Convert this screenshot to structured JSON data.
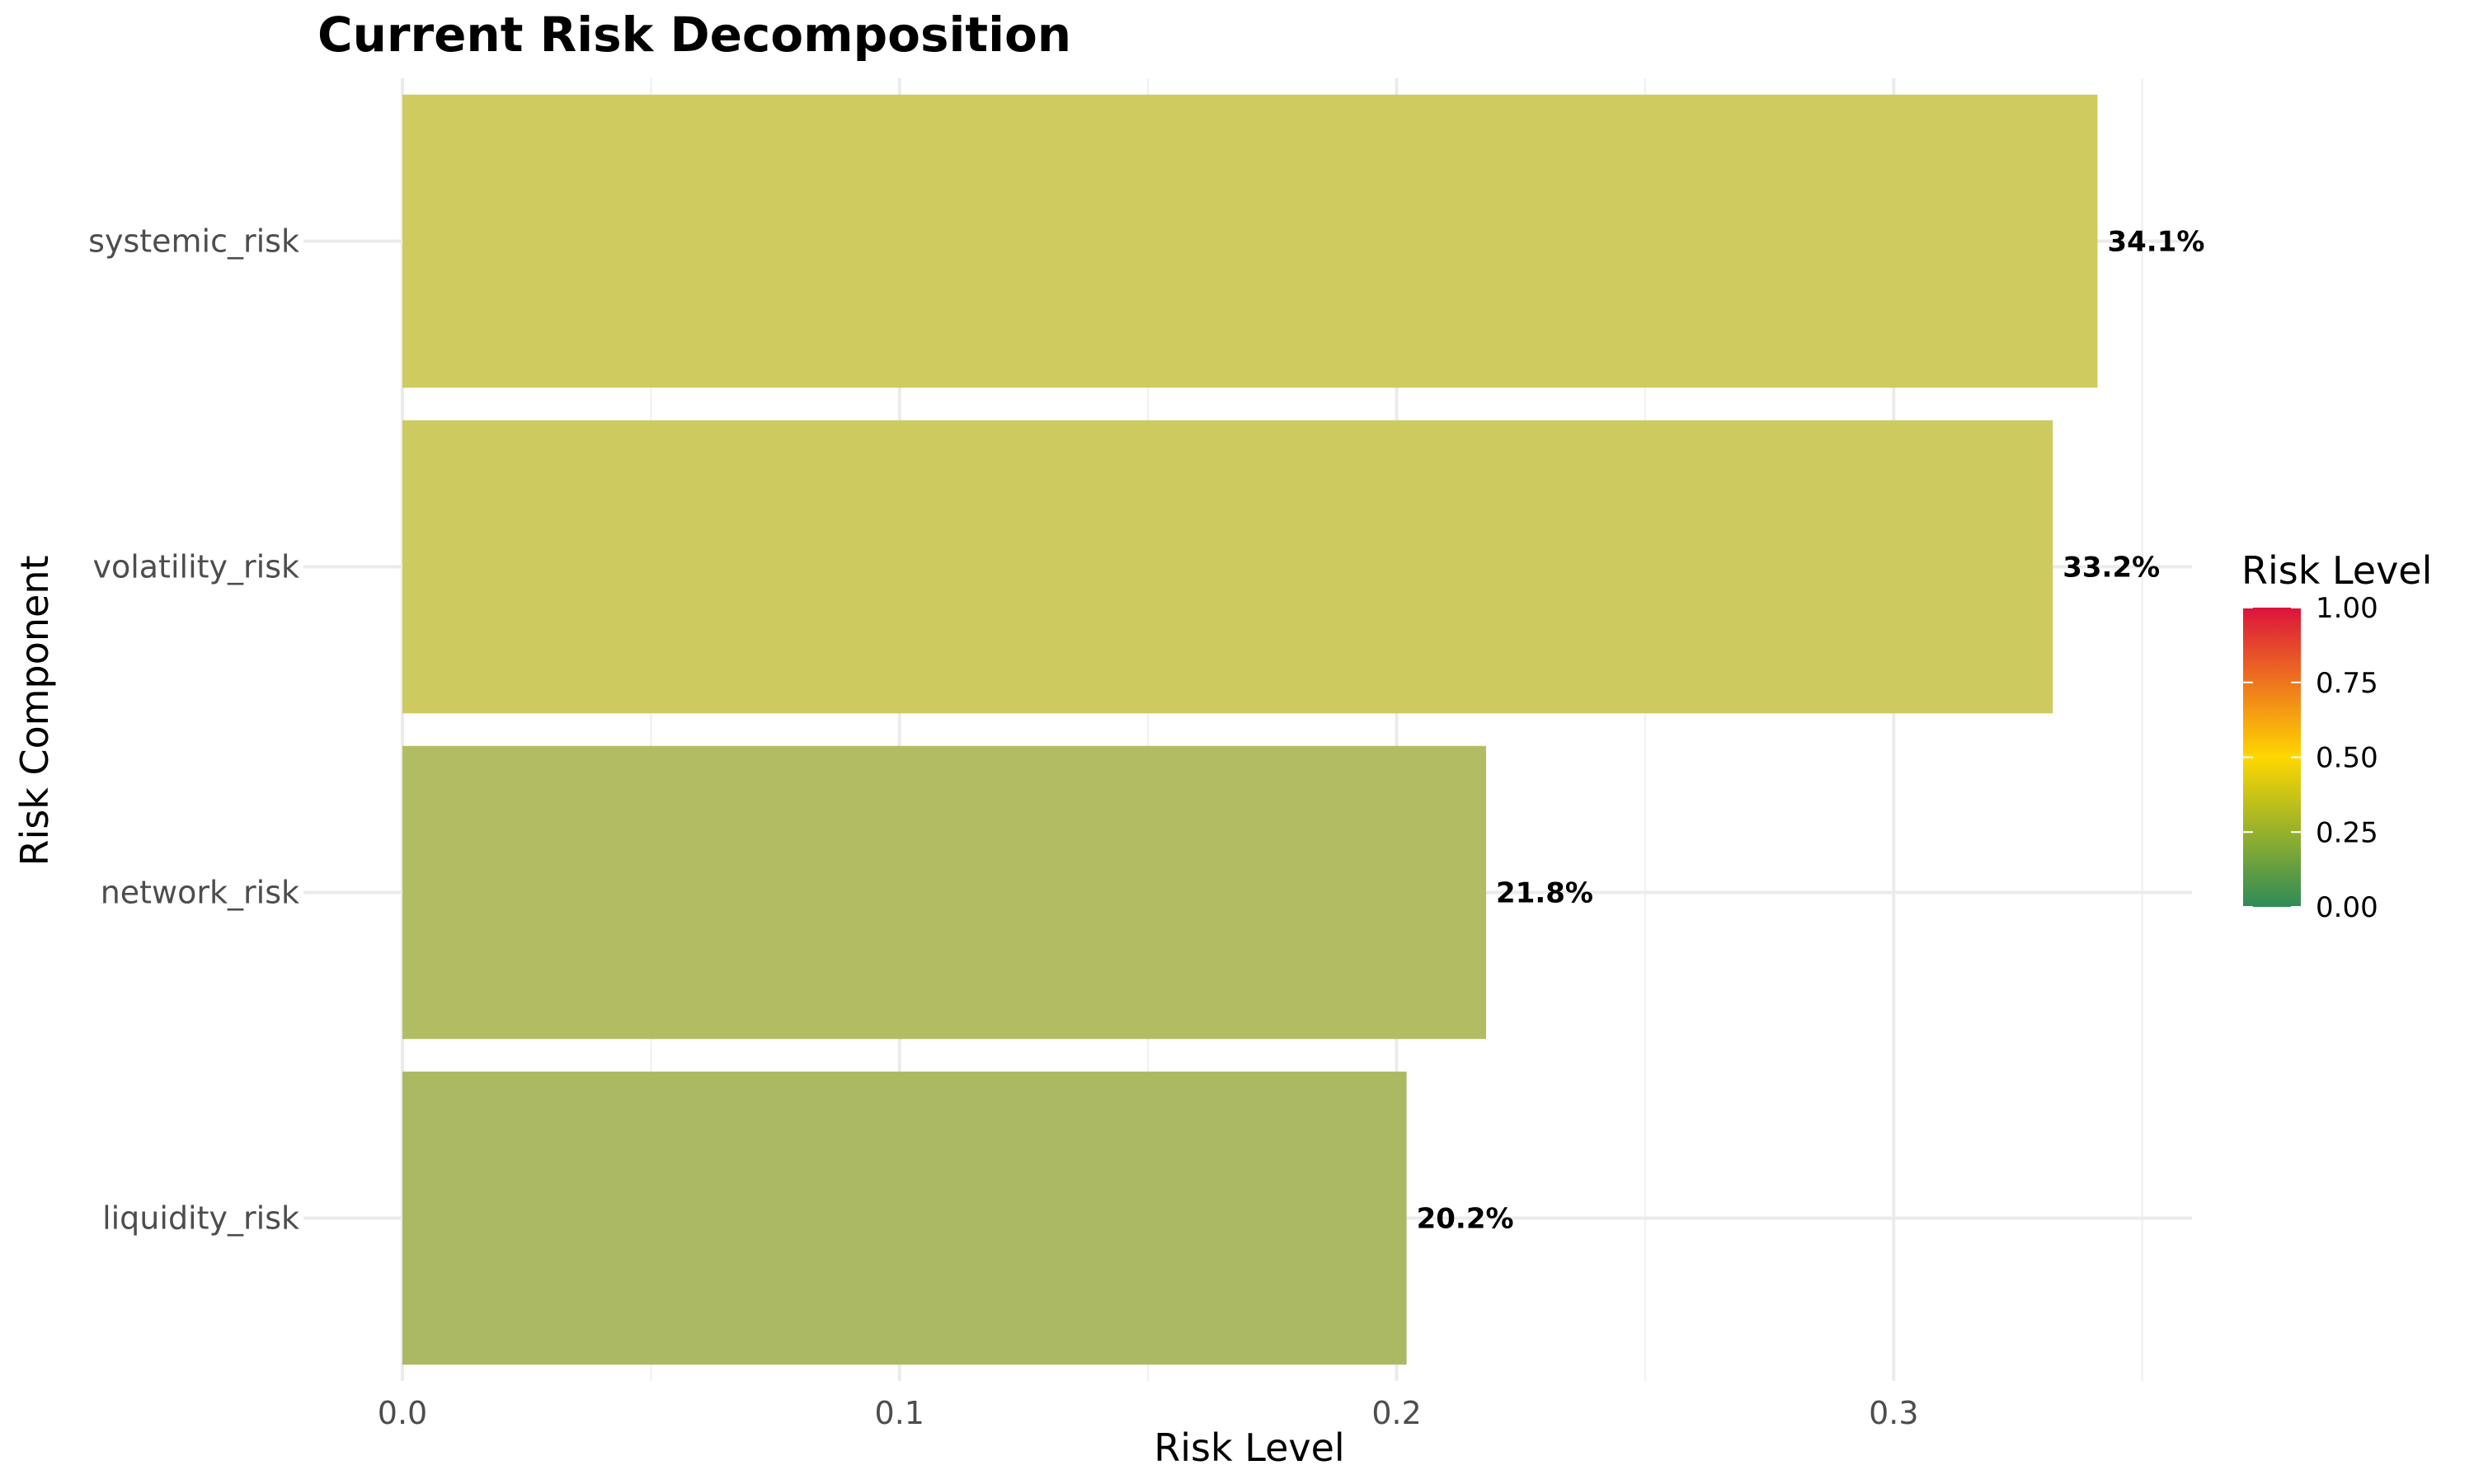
{
  "chart_data": {
    "type": "bar",
    "orientation": "horizontal",
    "title": "Current Risk Decomposition",
    "xlabel": "Risk Level",
    "ylabel": "Risk Component",
    "categories": [
      "systemic_risk",
      "volatility_risk",
      "network_risk",
      "liquidity_risk"
    ],
    "values": [
      0.341,
      0.332,
      0.218,
      0.202
    ],
    "data_labels": [
      "34.1%",
      "33.2%",
      "21.8%",
      "20.2%"
    ],
    "bar_colors": [
      "#d0cb5e",
      "#cdca60",
      "#b2bd63",
      "#abb962"
    ],
    "xlim": [
      0,
      0.36
    ],
    "xticks": [
      0.0,
      0.1,
      0.2,
      0.3
    ],
    "xtick_labels": [
      "0.0",
      "0.1",
      "0.2",
      "0.3"
    ],
    "grid": true,
    "legend": {
      "title": "Risk Level",
      "placement": "right",
      "range": [
        0,
        1
      ],
      "ticks": [
        0,
        0.25,
        0.5,
        0.75,
        1
      ],
      "tick_labels": [
        "0.00",
        "0.25",
        "0.50",
        "0.75",
        "1.00"
      ],
      "colors": [
        "#2e8b57",
        "#ffd700",
        "#dc143c"
      ]
    }
  }
}
